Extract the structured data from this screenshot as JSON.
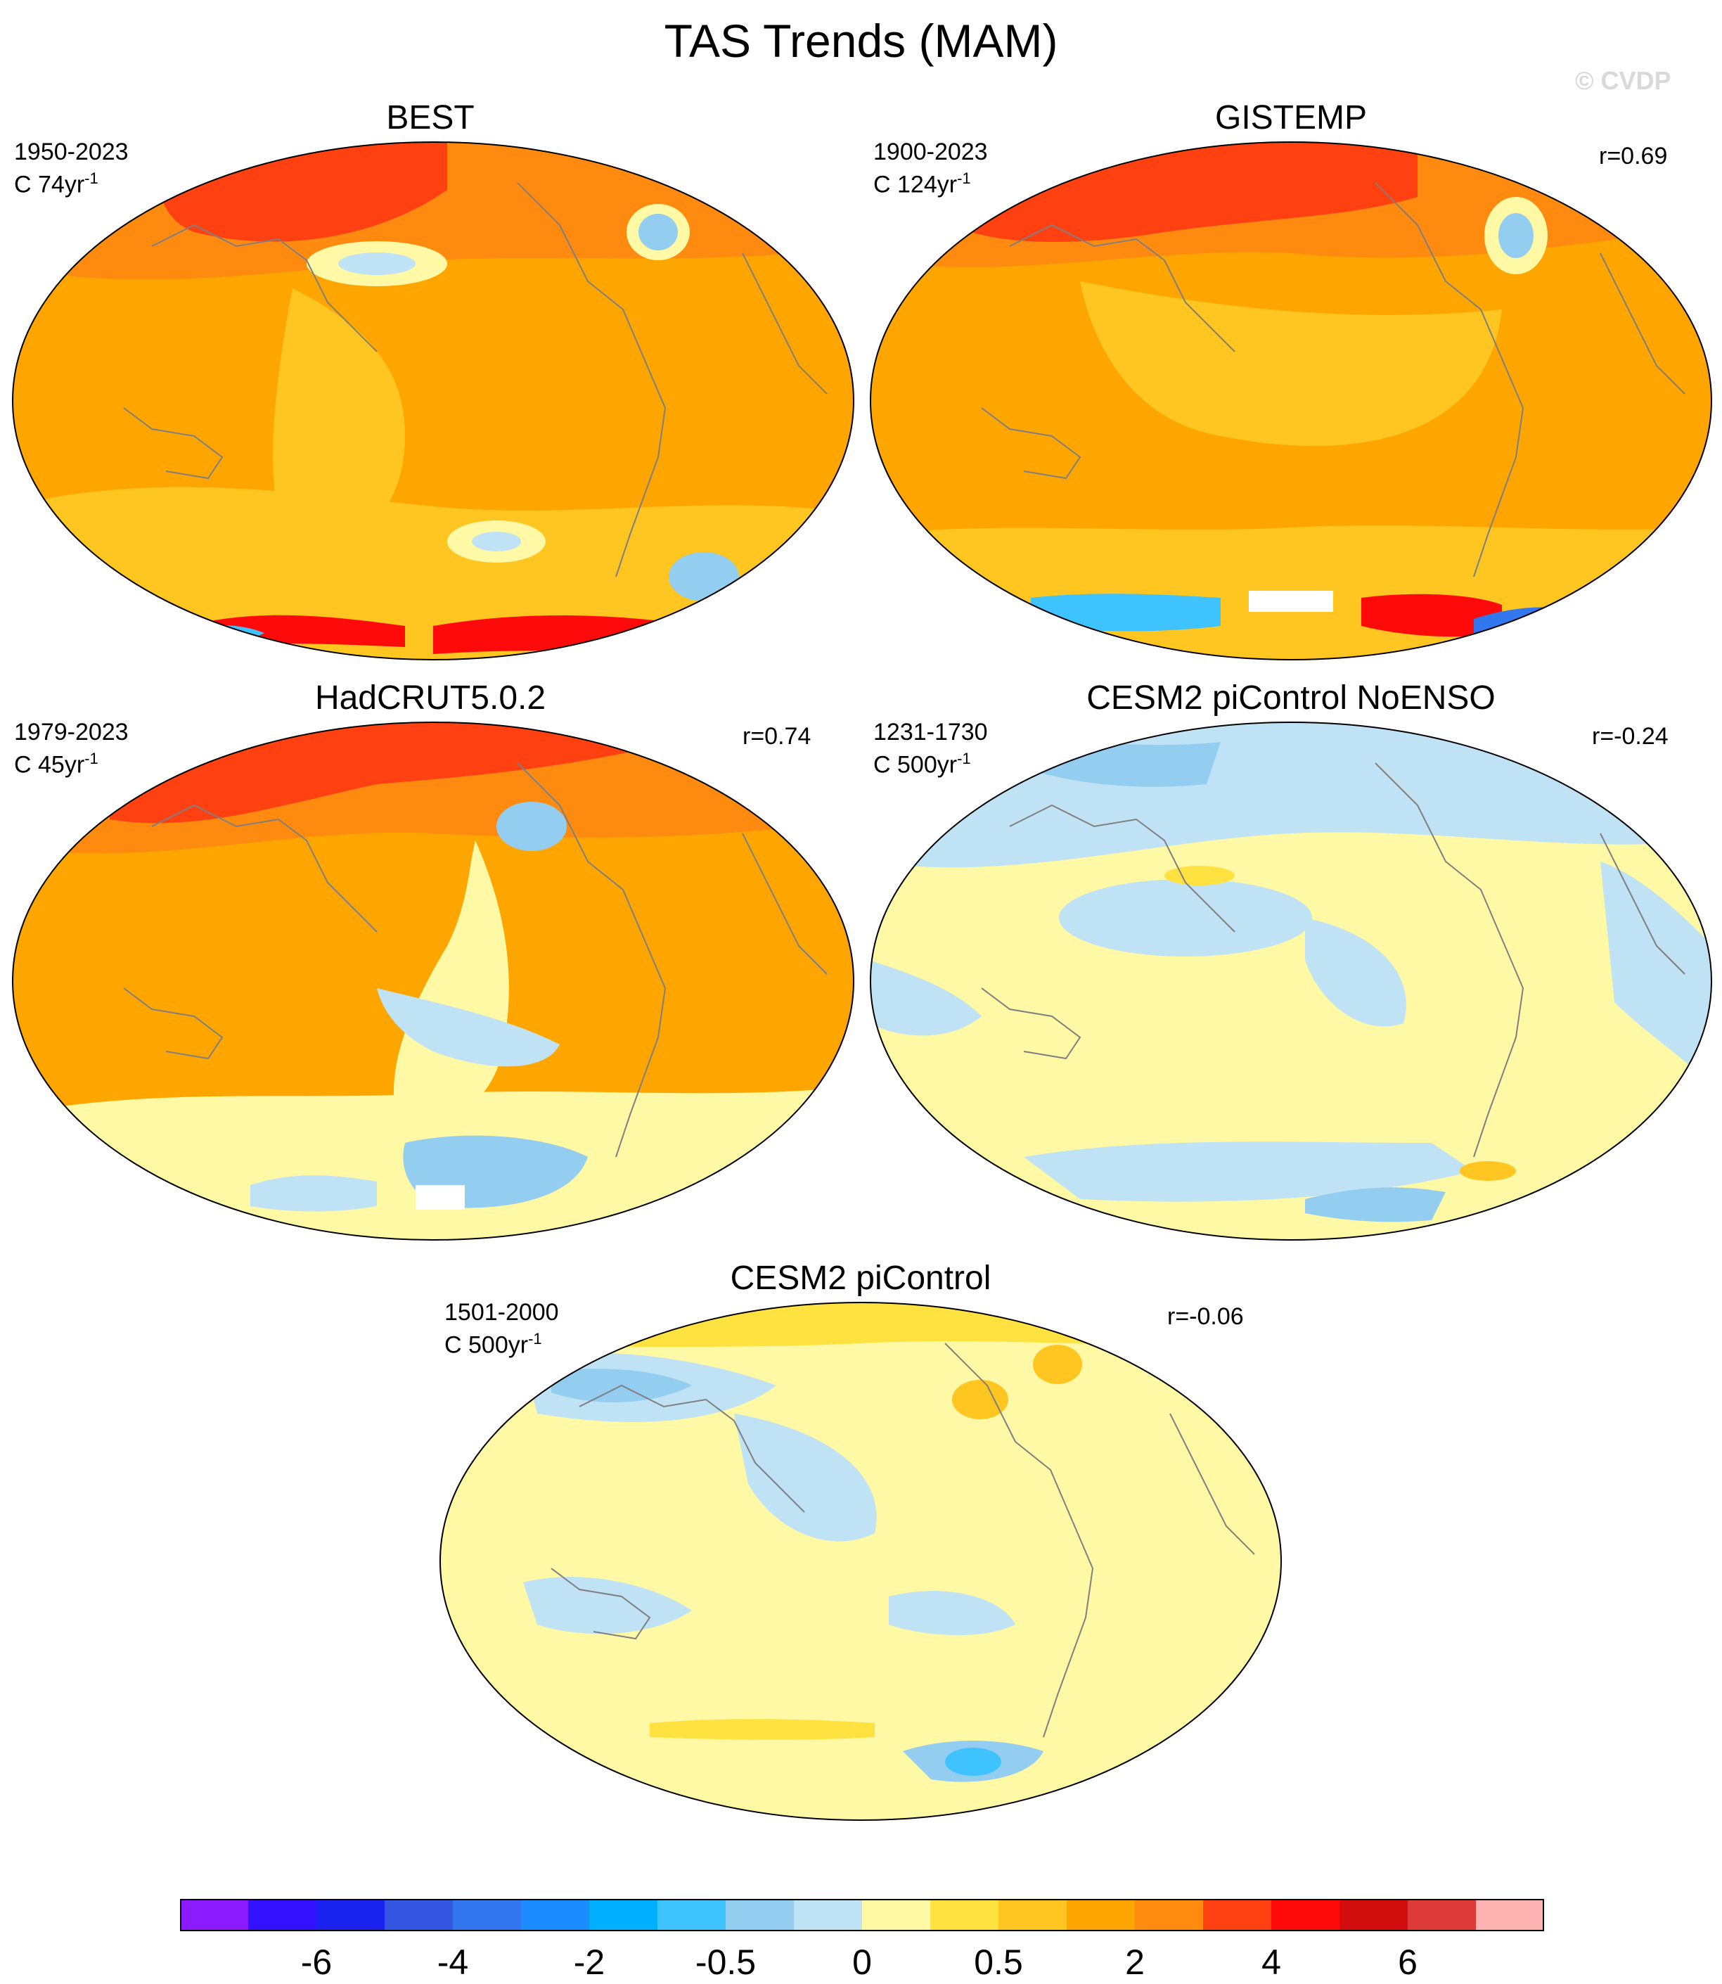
{
  "title": "TAS Trends (MAM)",
  "watermark": "© CVDP",
  "panels": [
    {
      "name": "BEST",
      "period": "1950-2023",
      "length_prefix": "C 74yr",
      "length_sup": "-1",
      "corr": "",
      "field": "warm-strong"
    },
    {
      "name": "GISTEMP",
      "period": "1900-2023",
      "length_prefix": "C 124yr",
      "length_sup": "-1",
      "corr": "r=0.69",
      "field": "warm"
    },
    {
      "name": "HadCRUT5.0.2",
      "period": "1979-2023",
      "length_prefix": "C 45yr",
      "length_sup": "-1",
      "corr": "r=0.74",
      "field": "warm-mixed"
    },
    {
      "name": "CESM2 piControl NoENSO",
      "period": "1231-1730",
      "length_prefix": "C 500yr",
      "length_sup": "-1",
      "corr": "r=-0.24",
      "field": "neutral"
    },
    {
      "name": "CESM2 piControl",
      "period": "1501-2000",
      "length_prefix": "C 500yr",
      "length_sup": "-1",
      "corr": "r=-0.06",
      "field": "neutral"
    }
  ],
  "colorbar": {
    "colors": [
      "#8c1aff",
      "#3311ff",
      "#1a22f0",
      "#3355e0",
      "#3377ee",
      "#1a8cff",
      "#00b0ff",
      "#3fc3ff",
      "#93cdef",
      "#bfe3f5",
      "#fff9a5",
      "#ffe240",
      "#ffc520",
      "#ffa500",
      "#ff8a10",
      "#ff4010",
      "#ff0a0a",
      "#d10d0d",
      "#dd3a3a",
      "#ffb3b3"
    ],
    "labels": [
      "-6",
      "-4",
      "-2",
      "-0.5",
      "0",
      "0.5",
      "2",
      "4",
      "6"
    ],
    "label_positions": [
      2,
      4,
      6,
      8,
      10,
      12,
      14,
      16,
      18
    ]
  }
}
